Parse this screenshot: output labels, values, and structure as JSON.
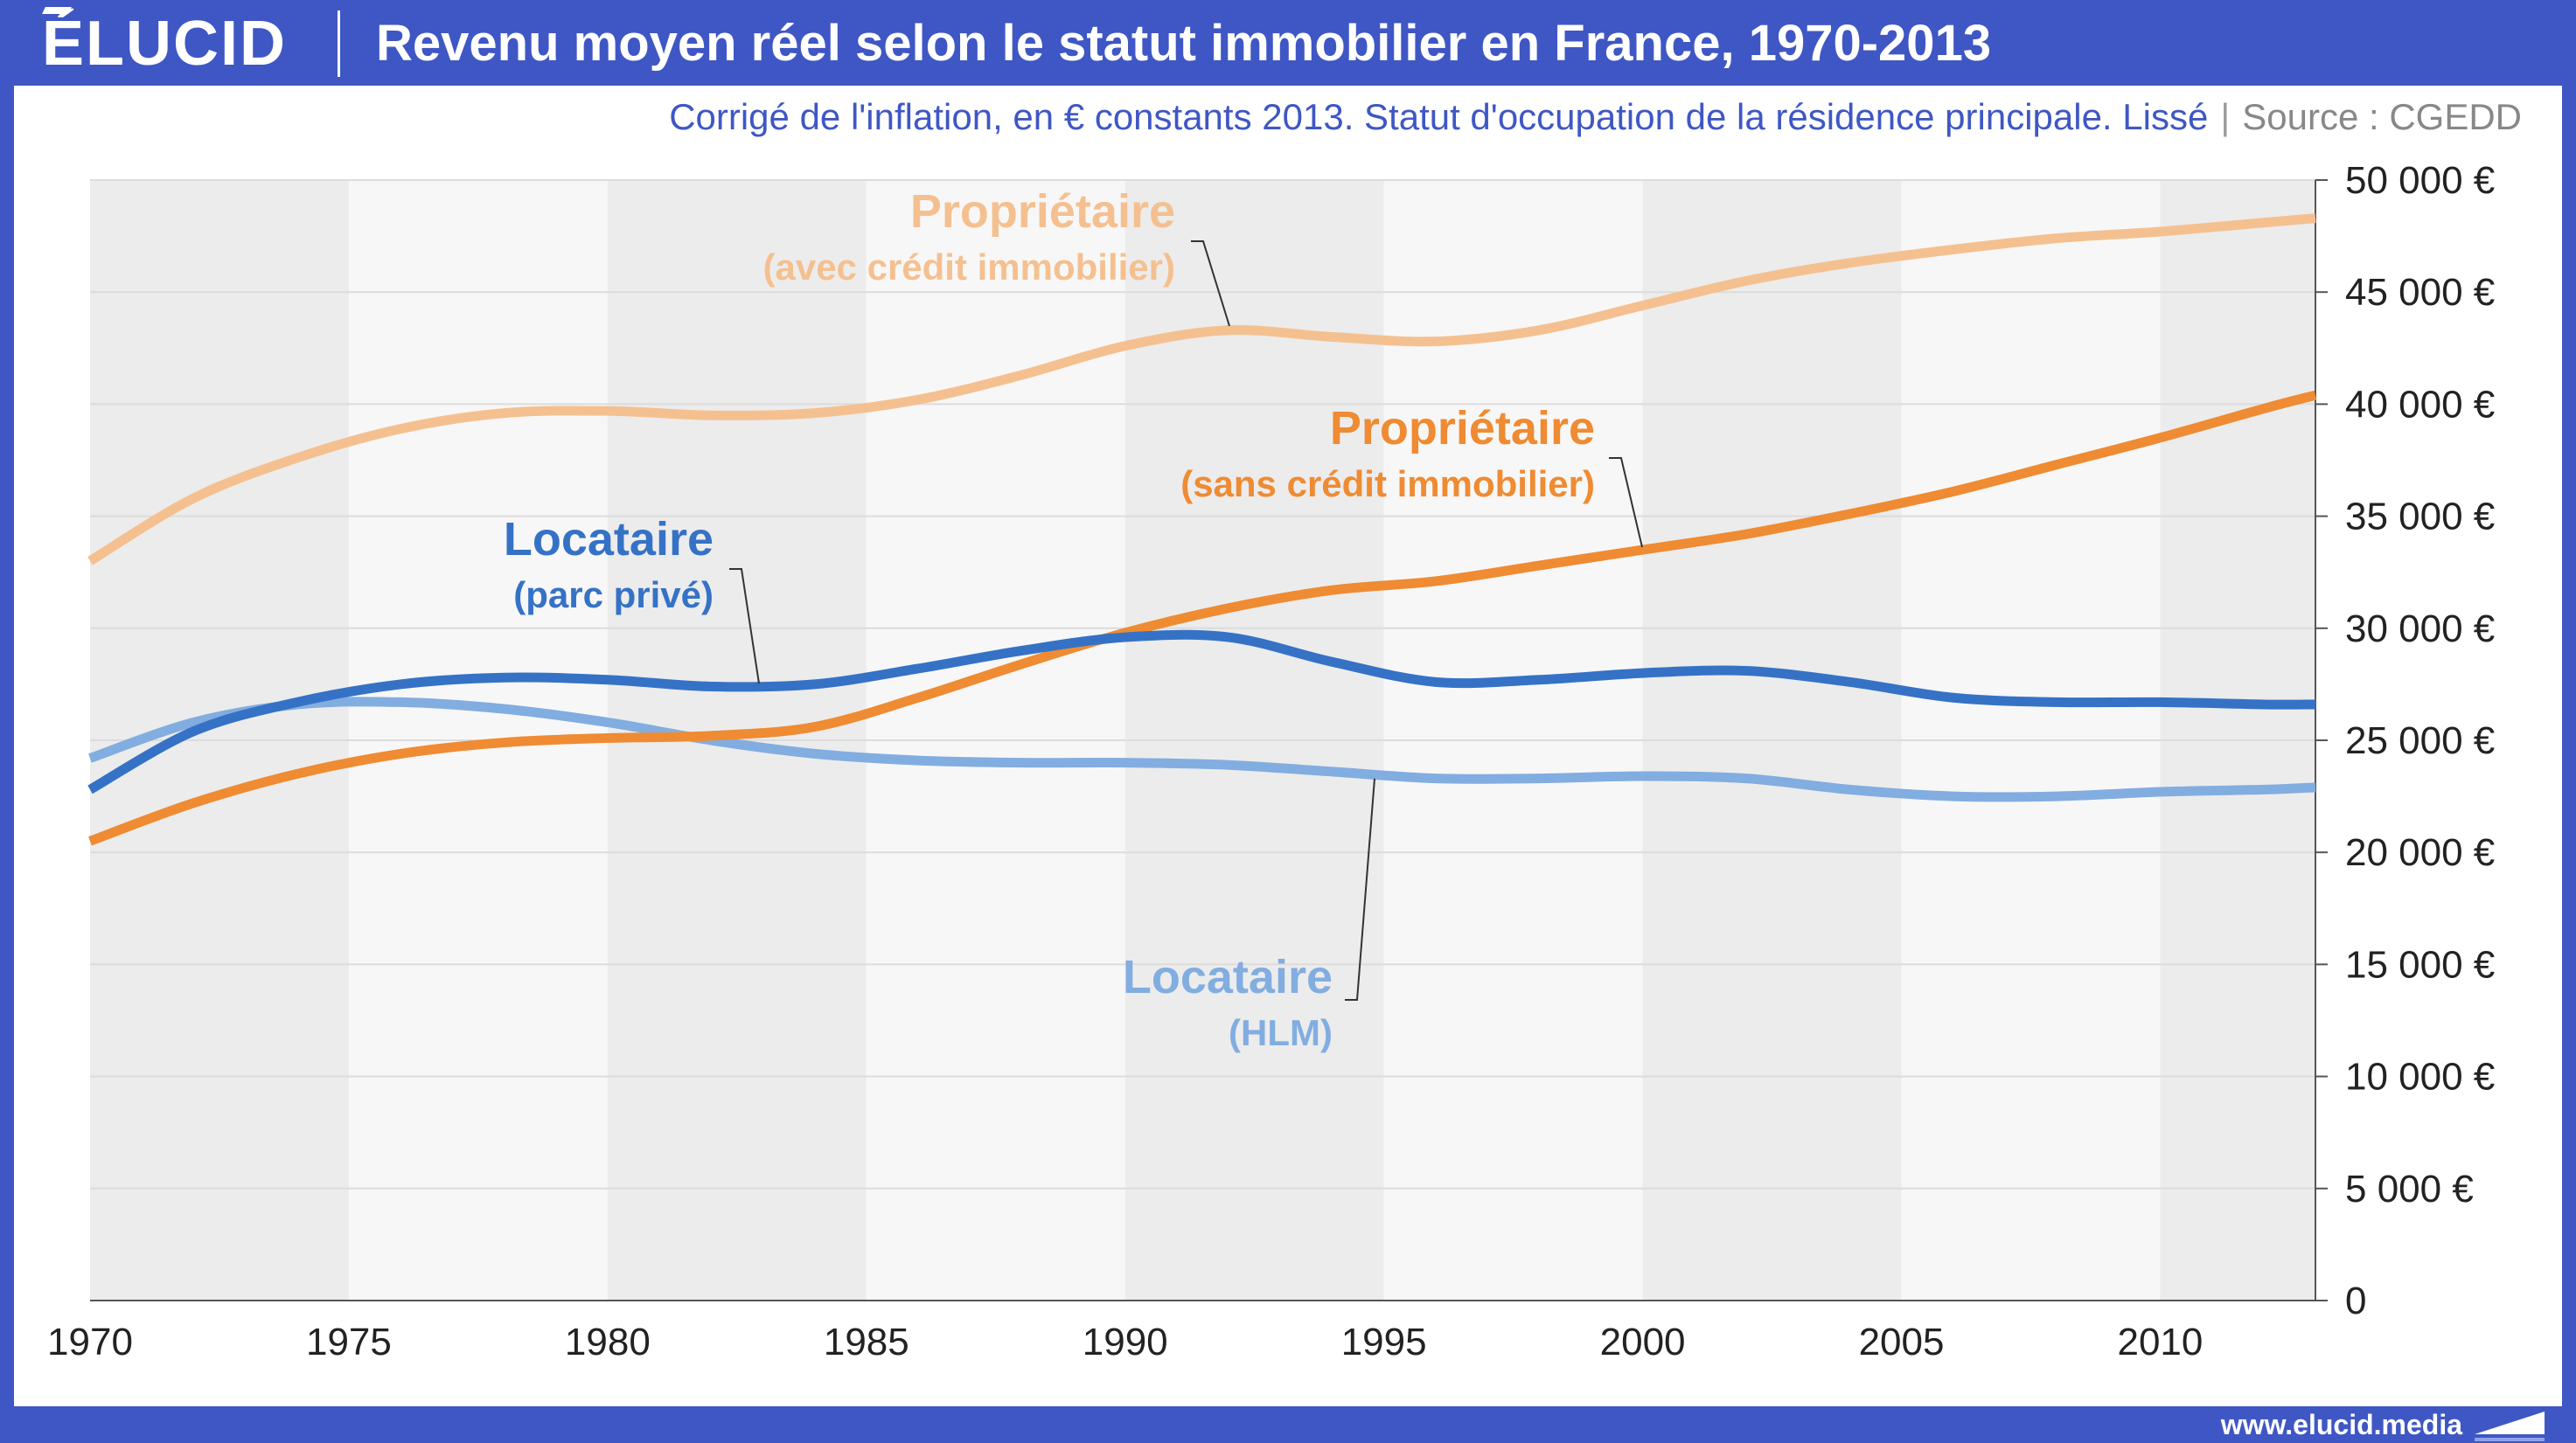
{
  "header": {
    "logo": "ÉLUCID",
    "title": "Revenu moyen réel selon le statut immobilier en France, 1970-2013"
  },
  "subtitle": {
    "text": "Corrigé de l'inflation, en € constants 2013. Statut d'occupation de la résidence principale. Lissé",
    "separator": "|",
    "source": "Source : CGEDD"
  },
  "footer": {
    "url": "www.elucid.media"
  },
  "colors": {
    "brand": "#3f57c4",
    "proprietaire_avec_credit": "#f5c090",
    "proprietaire_sans_credit": "#ef8b32",
    "locataire_parc_prive": "#3572c6",
    "locataire_hlm": "#82ade0"
  },
  "chart_data": {
    "type": "line",
    "title": "Revenu moyen réel selon le statut immobilier en France, 1970-2013",
    "subtitle": "Corrigé de l'inflation, en € constants 2013. Statut d'occupation de la résidence principale. Lissé",
    "xlim": [
      1970,
      2013
    ],
    "ylim": [
      0,
      50000
    ],
    "y_axis_side": "right",
    "x_ticks": [
      "1970",
      "1975",
      "1980",
      "1985",
      "1990",
      "1995",
      "2000",
      "2005",
      "2010"
    ],
    "y_ticks": [
      "0",
      "5 000 €",
      "10 000 €",
      "15 000 €",
      "20 000 €",
      "25 000 €",
      "30 000 €",
      "35 000 €",
      "40 000 €",
      "45 000 €",
      "50 000 €"
    ],
    "grid": true,
    "alternating_bands": true,
    "x": [
      1970,
      1972,
      1974,
      1976,
      1978,
      1980,
      1982,
      1984,
      1986,
      1988,
      1990,
      1992,
      1994,
      1996,
      1998,
      2000,
      2002,
      2004,
      2006,
      2008,
      2010,
      2012,
      2013
    ],
    "series": [
      {
        "name_line1": "Propriétaire",
        "name_line2": "(avec crédit immobilier)",
        "values": [
          33000,
          35800,
          37600,
          38900,
          39600,
          39700,
          39500,
          39600,
          40200,
          41300,
          42600,
          43300,
          43000,
          42800,
          43300,
          44400,
          45500,
          46300,
          46900,
          47400,
          47700,
          48100,
          48300
        ]
      },
      {
        "name_line1": "Propriétaire",
        "name_line2": "(sans crédit immobilier)",
        "values": [
          20500,
          22200,
          23500,
          24400,
          24900,
          25100,
          25200,
          25600,
          26900,
          28400,
          29800,
          30900,
          31700,
          32100,
          32800,
          33500,
          34200,
          35100,
          36100,
          37300,
          38500,
          39800,
          40400
        ]
      },
      {
        "name_line1": "Locataire",
        "name_line2": "(parc privé)",
        "values": [
          22800,
          25400,
          26700,
          27500,
          27800,
          27700,
          27400,
          27500,
          28200,
          29000,
          29600,
          29600,
          28500,
          27600,
          27700,
          28000,
          28100,
          27600,
          26900,
          26700,
          26700,
          26600,
          26600
        ]
      },
      {
        "name_line1": "Locataire",
        "name_line2": "(HLM)",
        "values": [
          24200,
          25800,
          26600,
          26700,
          26400,
          25800,
          25000,
          24400,
          24100,
          24000,
          24000,
          23900,
          23600,
          23300,
          23300,
          23400,
          23300,
          22800,
          22500,
          22500,
          22700,
          22800,
          22900
        ]
      }
    ]
  }
}
